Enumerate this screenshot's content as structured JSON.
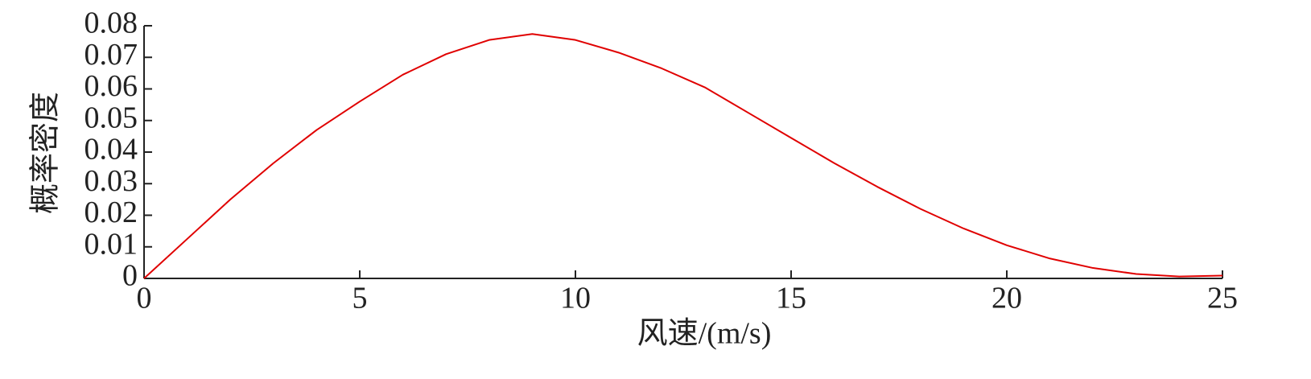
{
  "chart_data": {
    "type": "line",
    "x_label": "风速/(m/s)",
    "y_label": "概率密度",
    "x": [
      0,
      1,
      2,
      3,
      4,
      5,
      6,
      7,
      8,
      9,
      10,
      11,
      12,
      13,
      14,
      15,
      16,
      17,
      18,
      19,
      20,
      21,
      22,
      23,
      24,
      25
    ],
    "series": [
      {
        "color": "#e00000",
        "values": [
          0,
          0.0125,
          0.025,
          0.0365,
          0.047,
          0.056,
          0.0645,
          0.071,
          0.0755,
          0.0774,
          0.0755,
          0.0715,
          0.0665,
          0.0605,
          0.0525,
          0.0445,
          0.0365,
          0.029,
          0.022,
          0.0158,
          0.0105,
          0.0063,
          0.0033,
          0.0014,
          0.0006,
          0.0009
        ]
      }
    ],
    "xlim": [
      0,
      25
    ],
    "xticks": [
      0,
      5,
      10,
      15,
      20,
      25
    ],
    "ylim": [
      0,
      0.08
    ],
    "yticks": [
      0,
      0.01,
      0.02,
      0.03,
      0.04,
      0.05,
      0.06,
      0.07,
      0.08
    ]
  }
}
